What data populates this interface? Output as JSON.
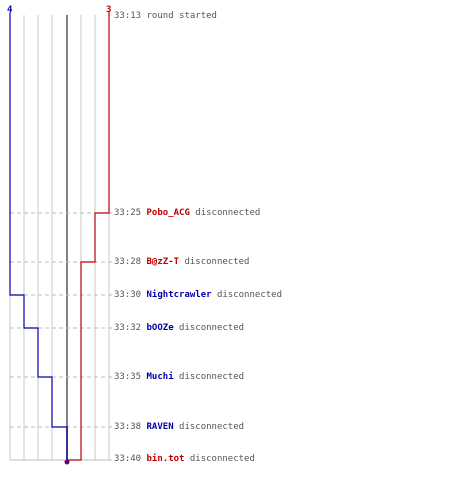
{
  "header": {
    "blue_score": "4",
    "red_score": "3"
  },
  "colors": {
    "blue": "#0000aa",
    "red": "#bb0000",
    "grid": "#c8c8c8",
    "center": "#808080",
    "dash": "#bdbdbd",
    "text": "#555555"
  },
  "events": [
    {
      "time": "33:13",
      "player": "",
      "team": "none",
      "message": "round started"
    },
    {
      "time": "33:25",
      "player": "Pobo_ACG",
      "team": "red",
      "message": "disconnected"
    },
    {
      "time": "33:28",
      "player": "B@zZ-T",
      "team": "red",
      "message": "disconnected"
    },
    {
      "time": "33:30",
      "player": "Nightcrawler",
      "team": "blue",
      "message": "disconnected"
    },
    {
      "time": "33:32",
      "player": "bOOZe",
      "team": "blue",
      "message": "disconnected"
    },
    {
      "time": "33:35",
      "player": "Muchi",
      "team": "blue",
      "message": "disconnected"
    },
    {
      "time": "33:38",
      "player": "RAVEN",
      "team": "blue",
      "message": "disconnected"
    },
    {
      "time": "33:40",
      "player": "bin.tot",
      "team": "red",
      "message": "disconnected"
    }
  ]
}
